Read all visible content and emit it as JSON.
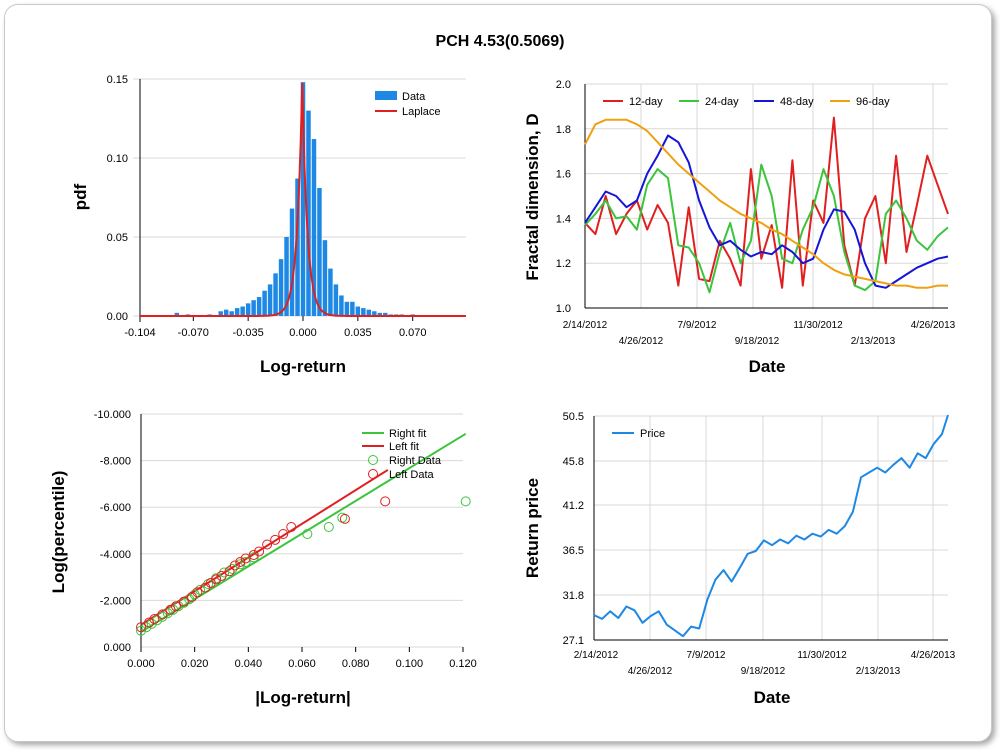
{
  "title": "PCH 4.53(0.5069)",
  "chart_data": [
    {
      "type": "bar",
      "id": "pdf",
      "xlabel": "Log-return",
      "ylabel": "pdf",
      "xlim": [
        -0.104,
        0.104
      ],
      "ylim": [
        0,
        0.15
      ],
      "x_ticks": [
        "-0.104",
        "-0.070",
        "-0.035",
        "0.000",
        "0.035",
        "0.070"
      ],
      "x_tick_values": [
        -0.104,
        -0.07,
        -0.035,
        0.0,
        0.035,
        0.07
      ],
      "y_ticks": [
        "0.00",
        "0.05",
        "0.10",
        "0.15"
      ],
      "y_tick_values": [
        0,
        0.05,
        0.1,
        0.15
      ],
      "legend_position": "top-right",
      "series": [
        {
          "name": "Data",
          "style": "bar",
          "color": "#1e88e5",
          "bin_width": 0.0035,
          "x": [
            -0.0805,
            -0.0735,
            -0.0595,
            -0.0525,
            -0.049,
            -0.0455,
            -0.042,
            -0.0385,
            -0.035,
            -0.0315,
            -0.028,
            -0.0245,
            -0.021,
            -0.0175,
            -0.014,
            -0.0105,
            -0.007,
            -0.0035,
            0.0,
            0.0035,
            0.007,
            0.0105,
            0.014,
            0.0175,
            0.021,
            0.0245,
            0.028,
            0.0315,
            0.035,
            0.0385,
            0.042,
            0.0455,
            0.049,
            0.0525,
            0.056,
            0.0595,
            0.063,
            0.07
          ],
          "values": [
            0.002,
            0.001,
            0.001,
            0.003,
            0.004,
            0.003,
            0.005,
            0.006,
            0.008,
            0.01,
            0.012,
            0.016,
            0.02,
            0.027,
            0.036,
            0.05,
            0.068,
            0.087,
            0.148,
            0.13,
            0.112,
            0.081,
            0.048,
            0.03,
            0.02,
            0.013,
            0.009,
            0.009,
            0.006,
            0.005,
            0.004,
            0.003,
            0.002,
            0.002,
            0.001,
            0.001,
            0.001,
            0.001
          ]
        },
        {
          "name": "Laplace",
          "style": "line",
          "color": "#e02020",
          "model": "laplace",
          "mu": -0.0005,
          "b": 0.0033
        }
      ]
    },
    {
      "type": "line",
      "id": "fractal",
      "xlabel": "Date",
      "ylabel": "Fractal dimension, D",
      "ylim": [
        1.0,
        2.0
      ],
      "y_ticks": [
        "1.0",
        "1.2",
        "1.4",
        "1.6",
        "1.8",
        "2.0"
      ],
      "y_tick_values": [
        1.0,
        1.2,
        1.4,
        1.6,
        1.8,
        2.0
      ],
      "x_ticks_top": [
        "2/14/2012",
        "7/9/2012",
        "11/30/2012",
        "4/26/2013"
      ],
      "x_ticks_bottom": [
        "4/26/2012",
        "9/18/2012",
        "2/13/2013"
      ],
      "x_tick_positions": [
        0,
        48,
        96,
        144,
        192,
        240,
        288,
        336
      ],
      "x_tick_labels_at": [
        "2/14/2012",
        "4/26/2012",
        "7/9/2012",
        "9/18/2012",
        "11/30/2012",
        "2/13/2013",
        "4/26/2013"
      ],
      "legend_position": "top",
      "x": [
        0,
        10,
        20,
        30,
        40,
        50,
        60,
        70,
        80,
        90,
        100,
        110,
        120,
        130,
        140,
        150,
        160,
        170,
        180,
        190,
        200,
        210,
        220,
        230,
        240,
        250,
        260,
        270,
        280,
        290,
        300,
        310,
        320,
        330,
        340,
        350
      ],
      "series": [
        {
          "name": "12-day",
          "color": "#e02020",
          "values": [
            1.38,
            1.33,
            1.5,
            1.33,
            1.42,
            1.48,
            1.35,
            1.46,
            1.38,
            1.1,
            1.45,
            1.13,
            1.12,
            1.3,
            1.22,
            1.1,
            1.62,
            1.22,
            1.37,
            1.09,
            1.66,
            1.1,
            1.48,
            1.38,
            1.85,
            1.28,
            1.1,
            1.4,
            1.5,
            1.2,
            1.68,
            1.25,
            1.46,
            1.68,
            1.55,
            1.42
          ]
        },
        {
          "name": "24-day",
          "color": "#3cc43c",
          "values": [
            1.37,
            1.42,
            1.48,
            1.4,
            1.41,
            1.35,
            1.55,
            1.62,
            1.58,
            1.28,
            1.27,
            1.2,
            1.07,
            1.25,
            1.38,
            1.2,
            1.3,
            1.64,
            1.5,
            1.22,
            1.2,
            1.35,
            1.45,
            1.62,
            1.5,
            1.25,
            1.1,
            1.08,
            1.12,
            1.42,
            1.48,
            1.4,
            1.3,
            1.26,
            1.32,
            1.36
          ]
        },
        {
          "name": "48-day",
          "color": "#1515d8",
          "values": [
            1.38,
            1.45,
            1.52,
            1.5,
            1.45,
            1.48,
            1.6,
            1.68,
            1.77,
            1.74,
            1.65,
            1.48,
            1.36,
            1.28,
            1.3,
            1.26,
            1.23,
            1.25,
            1.24,
            1.28,
            1.25,
            1.2,
            1.22,
            1.35,
            1.44,
            1.43,
            1.35,
            1.2,
            1.1,
            1.09,
            1.12,
            1.15,
            1.18,
            1.2,
            1.22,
            1.23
          ]
        },
        {
          "name": "96-day",
          "color": "#f0a010",
          "values": [
            1.73,
            1.82,
            1.84,
            1.84,
            1.84,
            1.82,
            1.79,
            1.74,
            1.69,
            1.64,
            1.6,
            1.56,
            1.52,
            1.48,
            1.45,
            1.42,
            1.4,
            1.38,
            1.35,
            1.33,
            1.3,
            1.27,
            1.24,
            1.2,
            1.17,
            1.15,
            1.14,
            1.13,
            1.12,
            1.11,
            1.1,
            1.1,
            1.09,
            1.09,
            1.1,
            1.1
          ]
        }
      ]
    },
    {
      "type": "scatter",
      "id": "tail",
      "xlabel": "|Log-return|",
      "ylabel": "Log(percentile)",
      "xlim": [
        0.0,
        0.12
      ],
      "ylim": [
        -10.0,
        0.0
      ],
      "x_ticks": [
        "0.000",
        "0.020",
        "0.040",
        "0.060",
        "0.080",
        "0.100",
        "0.120"
      ],
      "x_tick_values": [
        0,
        0.02,
        0.04,
        0.06,
        0.08,
        0.1,
        0.12
      ],
      "y_ticks": [
        "0.000",
        "-2.000",
        "-4.000",
        "-6.000",
        "-8.000",
        "-10.000"
      ],
      "y_tick_values": [
        0,
        -2,
        -4,
        -6,
        -8,
        -10
      ],
      "legend_position": "top-right",
      "series": [
        {
          "name": "Right fit",
          "style": "line",
          "color": "#3cc43c",
          "x": [
            0.0,
            0.121
          ],
          "y": [
            -0.65,
            -9.15
          ]
        },
        {
          "name": "Left fit",
          "style": "line",
          "color": "#e02020",
          "x": [
            0.0,
            0.092
          ],
          "y": [
            -0.95,
            -7.6
          ]
        },
        {
          "name": "Right Data",
          "style": "circle",
          "color": "#3cc43c",
          "x": [
            0.0,
            0.002,
            0.004,
            0.006,
            0.008,
            0.01,
            0.012,
            0.014,
            0.016,
            0.018,
            0.02,
            0.022,
            0.025,
            0.028,
            0.031,
            0.034,
            0.037,
            0.039,
            0.042,
            0.062,
            0.07,
            0.075,
            0.121
          ],
          "y": [
            -0.7,
            -0.85,
            -1.0,
            -1.15,
            -1.3,
            -1.45,
            -1.6,
            -1.75,
            -1.9,
            -2.05,
            -2.25,
            -2.45,
            -2.7,
            -2.95,
            -3.2,
            -3.35,
            -3.55,
            -3.65,
            -3.85,
            -4.85,
            -5.15,
            -5.55,
            -6.25
          ]
        },
        {
          "name": "Left Data",
          "style": "circle",
          "color": "#e02020",
          "x": [
            0.0,
            0.003,
            0.005,
            0.008,
            0.011,
            0.013,
            0.016,
            0.019,
            0.021,
            0.024,
            0.026,
            0.028,
            0.03,
            0.033,
            0.035,
            0.037,
            0.039,
            0.042,
            0.044,
            0.047,
            0.05,
            0.053,
            0.056,
            0.076,
            0.091
          ],
          "y": [
            -0.85,
            -1.05,
            -1.2,
            -1.4,
            -1.6,
            -1.75,
            -1.95,
            -2.15,
            -2.35,
            -2.55,
            -2.75,
            -2.9,
            -3.05,
            -3.25,
            -3.5,
            -3.65,
            -3.8,
            -3.95,
            -4.1,
            -4.4,
            -4.6,
            -4.85,
            -5.15,
            -5.5,
            -6.25
          ]
        }
      ]
    },
    {
      "type": "line",
      "id": "price",
      "xlabel": "Date",
      "ylabel": "Return price",
      "ylim": [
        27.1,
        50.5
      ],
      "y_ticks": [
        "27.1",
        "31.8",
        "36.5",
        "41.2",
        "45.8",
        "50.5"
      ],
      "y_tick_values": [
        27.1,
        31.8,
        36.5,
        41.2,
        45.8,
        50.5
      ],
      "x_ticks_top": [
        "2/14/2012",
        "7/9/2012",
        "11/30/2012",
        "4/26/2013"
      ],
      "x_ticks_bottom": [
        "4/26/2012",
        "9/18/2012",
        "2/13/2013"
      ],
      "legend_position": "top-left",
      "x": [
        0,
        8,
        16,
        24,
        32,
        40,
        48,
        56,
        64,
        72,
        80,
        88,
        96,
        104,
        112,
        120,
        128,
        136,
        144,
        152,
        160,
        168,
        176,
        184,
        192,
        200,
        208,
        216,
        224,
        232,
        240,
        248,
        256,
        264,
        272,
        280,
        288,
        296,
        304,
        312,
        320,
        328,
        336,
        344,
        350
      ],
      "series": [
        {
          "name": "Price",
          "color": "#1e88e5",
          "values": [
            29.7,
            29.3,
            30.1,
            29.4,
            30.6,
            30.2,
            28.9,
            29.6,
            30.1,
            28.7,
            28.1,
            27.5,
            28.5,
            28.3,
            31.3,
            33.4,
            34.4,
            33.2,
            34.6,
            36.1,
            36.4,
            37.5,
            37.0,
            37.6,
            37.2,
            38.0,
            37.6,
            38.2,
            37.9,
            38.6,
            38.2,
            39.0,
            40.5,
            44.1,
            44.6,
            45.1,
            44.6,
            45.4,
            46.1,
            45.1,
            46.6,
            46.1,
            47.6,
            48.6,
            50.6
          ]
        }
      ]
    }
  ]
}
